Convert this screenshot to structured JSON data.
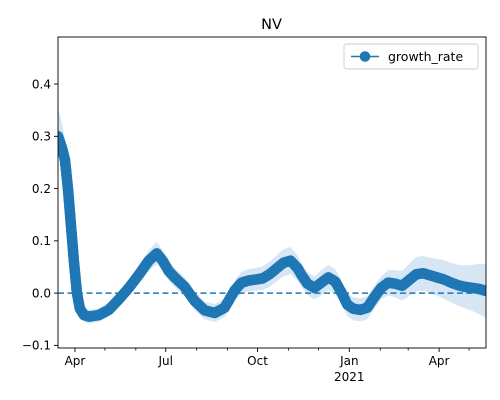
{
  "chart_data": {
    "type": "line",
    "title": "NV",
    "xlabel": "",
    "ylabel": "",
    "x_axis": {
      "type": "date",
      "range": [
        "2020-03-15",
        "2021-05-18"
      ],
      "major_ticks": [
        {
          "date": "2020-04-01",
          "label": "Apr",
          "sublabel": ""
        },
        {
          "date": "2020-07-01",
          "label": "Jul",
          "sublabel": ""
        },
        {
          "date": "2020-10-01",
          "label": "Oct",
          "sublabel": ""
        },
        {
          "date": "2021-01-01",
          "label": "Jan",
          "sublabel": "2021"
        },
        {
          "date": "2021-04-01",
          "label": "Apr",
          "sublabel": ""
        }
      ],
      "minor_ticks": [
        "2020-05-01",
        "2020-06-01",
        "2020-08-01",
        "2020-09-01",
        "2020-11-01",
        "2020-12-01",
        "2021-02-01",
        "2021-03-01",
        "2021-05-01"
      ]
    },
    "ylim": [
      -0.105,
      0.49
    ],
    "y_ticks": [
      -0.1,
      0.0,
      0.1,
      0.2,
      0.3,
      0.4
    ],
    "y_tick_labels": [
      "−0.1",
      "0.0",
      "0.1",
      "0.2",
      "0.3",
      "0.4"
    ],
    "reference_line": {
      "y": 0.0,
      "style": "dashed"
    },
    "grid": false,
    "legend": {
      "position": "top-right",
      "entries": [
        "growth_rate"
      ]
    },
    "colors": {
      "series": "#1f77b4",
      "band": "#d6e6f5"
    },
    "series": [
      {
        "name": "growth_rate",
        "marker": "circle",
        "x": [
          "2020-03-15",
          "2020-03-19",
          "2020-03-22",
          "2020-03-25",
          "2020-03-28",
          "2020-03-31",
          "2020-04-03",
          "2020-04-06",
          "2020-04-10",
          "2020-04-15",
          "2020-04-25",
          "2020-05-05",
          "2020-05-15",
          "2020-05-25",
          "2020-06-04",
          "2020-06-14",
          "2020-06-22",
          "2020-06-28",
          "2020-07-04",
          "2020-07-10",
          "2020-07-20",
          "2020-07-30",
          "2020-08-09",
          "2020-08-19",
          "2020-08-29",
          "2020-09-08",
          "2020-09-15",
          "2020-09-22",
          "2020-09-29",
          "2020-10-06",
          "2020-10-13",
          "2020-10-20",
          "2020-10-27",
          "2020-11-03",
          "2020-11-10",
          "2020-11-14",
          "2020-11-20",
          "2020-11-27",
          "2020-12-04",
          "2020-12-11",
          "2020-12-18",
          "2020-12-25",
          "2020-12-30",
          "2021-01-05",
          "2021-01-12",
          "2021-01-19",
          "2021-01-26",
          "2021-02-02",
          "2021-02-09",
          "2021-02-16",
          "2021-02-23",
          "2021-03-02",
          "2021-03-09",
          "2021-03-16",
          "2021-03-23",
          "2021-03-30",
          "2021-04-06",
          "2021-04-13",
          "2021-04-20",
          "2021-04-27",
          "2021-05-04",
          "2021-05-11",
          "2021-05-18"
        ],
        "values": [
          0.3,
          0.278,
          0.255,
          0.2,
          0.13,
          0.06,
          0.0,
          -0.03,
          -0.042,
          -0.045,
          -0.042,
          -0.032,
          -0.012,
          0.01,
          0.035,
          0.062,
          0.076,
          0.062,
          0.042,
          0.03,
          0.012,
          -0.015,
          -0.033,
          -0.038,
          -0.028,
          0.005,
          0.02,
          0.024,
          0.026,
          0.028,
          0.036,
          0.047,
          0.058,
          0.062,
          0.048,
          0.035,
          0.018,
          0.01,
          0.02,
          0.03,
          0.022,
          -0.002,
          -0.022,
          -0.03,
          -0.032,
          -0.028,
          -0.008,
          0.01,
          0.02,
          0.018,
          0.014,
          0.025,
          0.036,
          0.038,
          0.034,
          0.03,
          0.026,
          0.02,
          0.015,
          0.012,
          0.01,
          0.008,
          0.004
        ],
        "lower": [
          0.265,
          0.245,
          0.22,
          0.17,
          0.105,
          0.04,
          -0.018,
          -0.045,
          -0.055,
          -0.058,
          -0.055,
          -0.045,
          -0.025,
          -0.004,
          0.018,
          0.043,
          0.055,
          0.043,
          0.024,
          0.012,
          -0.006,
          -0.033,
          -0.05,
          -0.055,
          -0.046,
          -0.013,
          0.0,
          0.003,
          0.005,
          0.006,
          0.012,
          0.022,
          0.032,
          0.036,
          0.024,
          0.012,
          -0.004,
          -0.012,
          -0.004,
          0.006,
          -0.002,
          -0.024,
          -0.044,
          -0.052,
          -0.054,
          -0.05,
          -0.03,
          -0.012,
          -0.004,
          -0.008,
          -0.014,
          -0.006,
          0.003,
          0.005,
          0.0,
          -0.005,
          -0.011,
          -0.018,
          -0.024,
          -0.029,
          -0.034,
          -0.04,
          -0.048
        ],
        "upper": [
          0.355,
          0.325,
          0.295,
          0.235,
          0.16,
          0.085,
          0.02,
          -0.014,
          -0.028,
          -0.032,
          -0.029,
          -0.018,
          0.002,
          0.025,
          0.053,
          0.082,
          0.098,
          0.082,
          0.06,
          0.048,
          0.03,
          0.003,
          -0.016,
          -0.021,
          -0.01,
          0.024,
          0.041,
          0.046,
          0.048,
          0.051,
          0.06,
          0.072,
          0.084,
          0.088,
          0.072,
          0.058,
          0.04,
          0.032,
          0.044,
          0.054,
          0.046,
          0.02,
          0.0,
          -0.008,
          -0.01,
          -0.006,
          0.014,
          0.032,
          0.044,
          0.044,
          0.042,
          0.056,
          0.069,
          0.071,
          0.068,
          0.065,
          0.063,
          0.058,
          0.054,
          0.053,
          0.054,
          0.056,
          0.056
        ]
      }
    ]
  }
}
